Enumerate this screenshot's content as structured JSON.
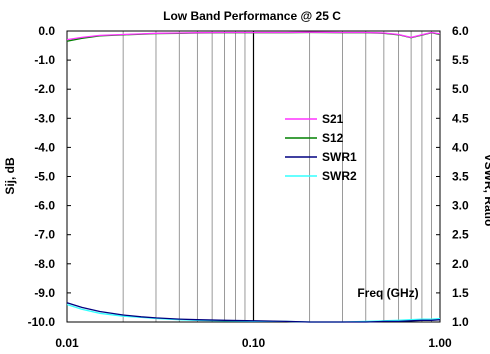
{
  "chart_data": {
    "type": "line",
    "title": "Low Band Performance @ 25 C",
    "xlabel": "",
    "x_annotation": "Freq (GHz)",
    "ylabel_left": "Sij, dB",
    "ylabel_right": "VSWR, Ratio",
    "x_scale": "log",
    "xlim": [
      0.01,
      1.0
    ],
    "ylim_left": [
      -10,
      0
    ],
    "ylim_right": [
      1.0,
      6.0
    ],
    "x_tick_labels": [
      "0.01",
      "0.10",
      "1.00"
    ],
    "y_left_tick_labels": [
      "0.0",
      "-1.0",
      "-2.0",
      "-3.0",
      "-4.0",
      "-5.0",
      "-6.0",
      "-7.0",
      "-8.0",
      "-9.0",
      "-10.0"
    ],
    "y_right_tick_labels": [
      "6.0",
      "5.5",
      "5.0",
      "4.5",
      "4.0",
      "3.5",
      "3.0",
      "2.5",
      "2.0",
      "1.5",
      "1.0"
    ],
    "grid": "vertical",
    "legend_position": "center-right",
    "series": [
      {
        "name": "S21",
        "axis": "left",
        "color": "#ff33ff",
        "x": [
          0.01,
          0.012,
          0.015,
          0.02,
          0.025,
          0.03,
          0.04,
          0.05,
          0.07,
          0.1,
          0.15,
          0.2,
          0.3,
          0.4,
          0.5,
          0.6,
          0.7,
          0.8,
          0.9,
          1.0
        ],
        "y": [
          -0.3,
          -0.22,
          -0.15,
          -0.12,
          -0.1,
          -0.08,
          -0.07,
          -0.06,
          -0.05,
          -0.05,
          -0.05,
          -0.04,
          -0.05,
          -0.05,
          -0.07,
          -0.12,
          -0.22,
          -0.13,
          -0.05,
          -0.1
        ]
      },
      {
        "name": "S12",
        "axis": "left",
        "color": "#008000",
        "x": [
          0.01,
          0.012,
          0.015,
          0.02,
          0.025,
          0.03,
          0.04,
          0.05,
          0.07,
          0.1,
          0.15,
          0.2,
          0.3,
          0.4,
          0.5,
          0.6,
          0.7,
          0.8,
          0.9,
          1.0
        ],
        "y": [
          -0.35,
          -0.25,
          -0.17,
          -0.13,
          -0.11,
          -0.09,
          -0.08,
          -0.07,
          -0.06,
          -0.06,
          -0.06,
          -0.05,
          -0.06,
          -0.06,
          -0.08,
          -0.13,
          -0.23,
          -0.14,
          -0.06,
          -0.12
        ]
      },
      {
        "name": "SWR1",
        "axis": "right",
        "color": "#000080",
        "x": [
          0.01,
          0.012,
          0.015,
          0.02,
          0.025,
          0.03,
          0.04,
          0.05,
          0.07,
          0.1,
          0.15,
          0.2,
          0.3,
          0.4,
          0.5,
          0.6,
          0.7,
          0.8,
          0.9,
          1.0
        ],
        "y": [
          1.33,
          1.25,
          1.18,
          1.12,
          1.09,
          1.07,
          1.05,
          1.04,
          1.03,
          1.02,
          1.01,
          1.0,
          1.0,
          1.0,
          1.01,
          1.01,
          1.02,
          1.03,
          1.03,
          1.04
        ]
      },
      {
        "name": "SWR2",
        "axis": "right",
        "color": "#33ffff",
        "x": [
          0.01,
          0.012,
          0.015,
          0.02,
          0.025,
          0.03,
          0.04,
          0.05,
          0.07,
          0.1,
          0.15,
          0.2,
          0.3,
          0.4,
          0.5,
          0.6,
          0.7,
          0.8,
          0.9,
          1.0
        ],
        "y": [
          1.3,
          1.22,
          1.15,
          1.1,
          1.08,
          1.06,
          1.04,
          1.03,
          1.02,
          1.01,
          1.01,
          1.0,
          1.0,
          1.01,
          1.02,
          1.03,
          1.04,
          1.05,
          1.05,
          1.06
        ]
      }
    ]
  }
}
